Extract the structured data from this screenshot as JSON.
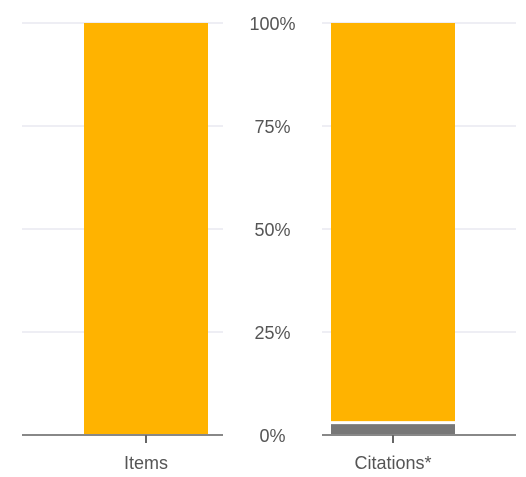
{
  "chart_data": {
    "type": "bar",
    "stacked": true,
    "percent": true,
    "categories": [
      "Items",
      "Citations*"
    ],
    "series": [
      {
        "values": [
          0,
          3
        ],
        "color": "#777777"
      },
      {
        "values": [
          100,
          97
        ],
        "color": "#FFB300"
      }
    ],
    "ylim": [
      0,
      100
    ],
    "yticks": [
      0,
      25,
      50,
      75,
      100
    ],
    "ytick_labels": [
      "0%",
      "25%",
      "50%",
      "75%",
      "100%"
    ],
    "grid": true,
    "legend": "none",
    "colors": {
      "grid": "#dcdcea",
      "axis": "#888888",
      "label": "#555555"
    }
  }
}
